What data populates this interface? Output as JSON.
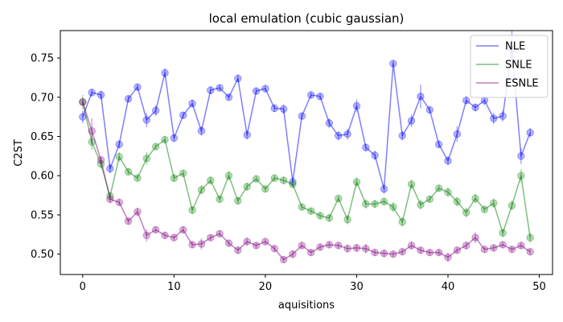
{
  "chart_data": {
    "type": "line",
    "title": "local emulation (cubic gaussian)",
    "xlabel": "aquisitions",
    "ylabel": "C2ST",
    "xlim": [
      -2.45,
      51.45
    ],
    "ylim": [
      0.474,
      0.785
    ],
    "xticks": [
      0,
      10,
      20,
      30,
      40,
      50
    ],
    "yticks": [
      0.5,
      0.55,
      0.6,
      0.65,
      0.7,
      0.75
    ],
    "ytick_labels": [
      "0.50",
      "0.55",
      "0.60",
      "0.65",
      "0.70",
      "0.75"
    ],
    "legend_placement": "top-right",
    "grid": false,
    "series": [
      {
        "name": "NLE",
        "color": "#0000ff",
        "x": [
          0,
          1,
          2,
          3,
          4,
          5,
          6,
          7,
          8,
          9,
          10,
          11,
          12,
          13,
          14,
          15,
          16,
          17,
          18,
          19,
          20,
          21,
          22,
          23,
          24,
          25,
          26,
          27,
          28,
          29,
          30,
          31,
          32,
          33,
          34,
          35,
          36,
          37,
          38,
          39,
          40,
          41,
          42,
          43,
          44,
          45,
          46,
          47,
          48,
          49
        ],
        "values": [
          0.675,
          0.706,
          0.703,
          0.609,
          0.64,
          0.698,
          0.713,
          0.671,
          0.683,
          0.731,
          0.648,
          0.677,
          0.692,
          0.657,
          0.709,
          0.712,
          0.7,
          0.724,
          0.652,
          0.708,
          0.711,
          0.686,
          0.685,
          0.592,
          0.676,
          0.703,
          0.701,
          0.667,
          0.651,
          0.653,
          0.689,
          0.636,
          0.626,
          0.583,
          0.743,
          0.651,
          0.67,
          0.701,
          0.684,
          0.64,
          0.619,
          0.653,
          0.696,
          0.687,
          0.696,
          0.673,
          0.676,
          0.761,
          0.625,
          0.655
        ],
        "errors": [
          0.008,
          0.005,
          0.006,
          0.006,
          0.005,
          0.004,
          0.004,
          0.009,
          0.007,
          0.006,
          0.005,
          0.004,
          0.005,
          0.006,
          0.005,
          0.004,
          0.004,
          0.005,
          0.006,
          0.004,
          0.004,
          0.005,
          0.006,
          0.006,
          0.004,
          0.004,
          0.004,
          0.006,
          0.006,
          0.007,
          0.008,
          0.005,
          0.006,
          0.006,
          0.004,
          0.006,
          0.008,
          0.015,
          0.004,
          0.005,
          0.006,
          0.01,
          0.005,
          0.005,
          0.006,
          0.007,
          0.007,
          0.025,
          0.01,
          0.006
        ]
      },
      {
        "name": "SNLE",
        "color": "#008000",
        "x": [
          0,
          1,
          2,
          3,
          4,
          5,
          6,
          7,
          8,
          9,
          10,
          11,
          12,
          13,
          14,
          15,
          16,
          17,
          18,
          19,
          20,
          21,
          22,
          23,
          24,
          25,
          26,
          27,
          28,
          29,
          30,
          31,
          32,
          33,
          34,
          35,
          36,
          37,
          38,
          39,
          40,
          41,
          42,
          43,
          44,
          45,
          46,
          47,
          48,
          49
        ],
        "values": [
          0.694,
          0.643,
          0.615,
          0.574,
          0.624,
          0.605,
          0.597,
          0.622,
          0.637,
          0.646,
          0.597,
          0.603,
          0.556,
          0.582,
          0.594,
          0.57,
          0.6,
          0.568,
          0.586,
          0.596,
          0.583,
          0.597,
          0.594,
          0.589,
          0.56,
          0.555,
          0.549,
          0.546,
          0.571,
          0.544,
          0.592,
          0.564,
          0.564,
          0.567,
          0.56,
          0.541,
          0.589,
          0.563,
          0.57,
          0.584,
          0.579,
          0.567,
          0.553,
          0.571,
          0.557,
          0.565,
          0.527,
          0.562,
          0.6,
          0.521
        ],
        "errors": [
          0.009,
          0.01,
          0.006,
          0.005,
          0.006,
          0.004,
          0.004,
          0.008,
          0.004,
          0.004,
          0.005,
          0.004,
          0.005,
          0.006,
          0.005,
          0.004,
          0.006,
          0.005,
          0.005,
          0.004,
          0.004,
          0.004,
          0.005,
          0.004,
          0.004,
          0.004,
          0.004,
          0.005,
          0.004,
          0.006,
          0.006,
          0.006,
          0.005,
          0.005,
          0.006,
          0.006,
          0.006,
          0.006,
          0.004,
          0.004,
          0.006,
          0.006,
          0.006,
          0.006,
          0.004,
          0.006,
          0.005,
          0.006,
          0.008,
          0.006
        ]
      },
      {
        "name": "ESNLE",
        "color": "#800080",
        "x": [
          0,
          1,
          2,
          3,
          4,
          5,
          6,
          7,
          8,
          9,
          10,
          11,
          12,
          13,
          14,
          15,
          16,
          17,
          18,
          19,
          20,
          21,
          22,
          23,
          24,
          25,
          26,
          27,
          28,
          29,
          30,
          31,
          32,
          33,
          34,
          35,
          36,
          37,
          38,
          39,
          40,
          41,
          42,
          43,
          44,
          45,
          46,
          47,
          48,
          49
        ],
        "values": [
          0.694,
          0.657,
          0.62,
          0.57,
          0.566,
          0.542,
          0.554,
          0.524,
          0.531,
          0.524,
          0.521,
          0.531,
          0.512,
          0.513,
          0.521,
          0.526,
          0.514,
          0.505,
          0.516,
          0.511,
          0.516,
          0.507,
          0.493,
          0.5,
          0.511,
          0.502,
          0.509,
          0.512,
          0.511,
          0.507,
          0.508,
          0.507,
          0.502,
          0.501,
          0.5,
          0.503,
          0.511,
          0.505,
          0.502,
          0.502,
          0.496,
          0.505,
          0.511,
          0.521,
          0.506,
          0.508,
          0.512,
          0.506,
          0.511,
          0.503
        ],
        "errors": [
          0.004,
          0.016,
          0.004,
          0.005,
          0.004,
          0.004,
          0.005,
          0.008,
          0.004,
          0.004,
          0.004,
          0.004,
          0.004,
          0.007,
          0.004,
          0.004,
          0.004,
          0.005,
          0.005,
          0.004,
          0.004,
          0.004,
          0.004,
          0.005,
          0.004,
          0.004,
          0.004,
          0.004,
          0.004,
          0.005,
          0.005,
          0.006,
          0.004,
          0.005,
          0.004,
          0.004,
          0.005,
          0.004,
          0.004,
          0.004,
          0.006,
          0.004,
          0.005,
          0.007,
          0.004,
          0.004,
          0.004,
          0.004,
          0.004,
          0.004
        ]
      }
    ]
  }
}
